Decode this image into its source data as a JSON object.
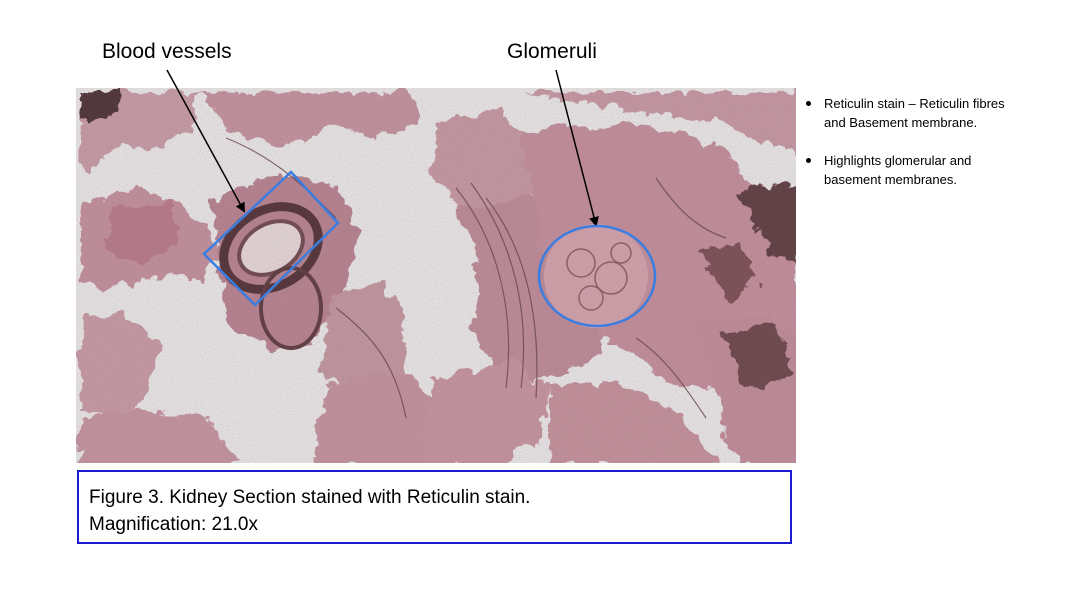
{
  "labels": {
    "blood_vessels": "Blood vessels",
    "glomeruli": "Glomeruli"
  },
  "bullets": [
    "Reticulin stain – Reticulin fibres and Basement membrane.",
    "Highlights glomerular and basement membranes."
  ],
  "caption": {
    "line1": "Figure 3. Kidney Section stained with Reticulin stain.",
    "line2": "Magnification: 21.0x"
  },
  "colors": {
    "annotation_blue": "#3b7de0",
    "caption_border": "#1a1ad0",
    "tissue_pink": "#c99aa5",
    "tissue_dark": "#3a2a2d",
    "background_slide": "#eef0f0"
  }
}
